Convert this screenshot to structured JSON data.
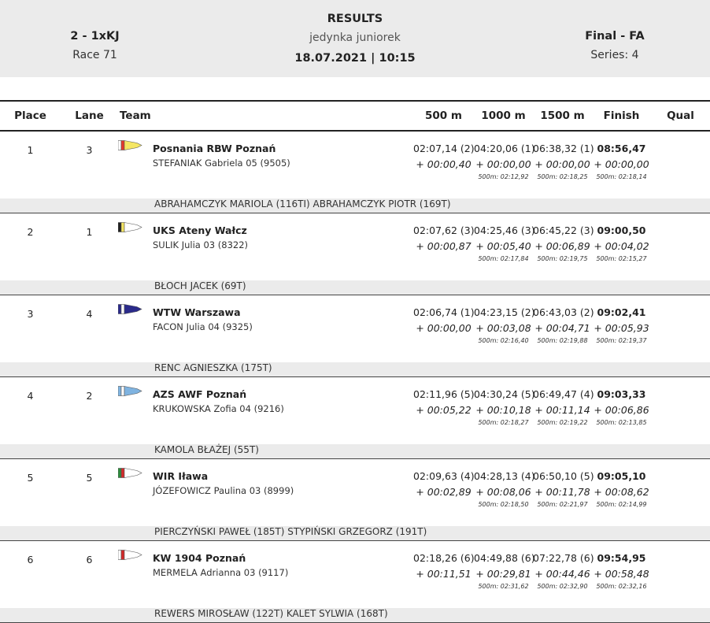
{
  "header": {
    "event_code": "2 - 1xKJ",
    "race": "Race 71",
    "title": "RESULTS",
    "event_name": "jedynka juniorek",
    "date_time": "18.07.2021 | 10:15",
    "phase": "Final - FA",
    "series": "Series: 4"
  },
  "table": {
    "columns": {
      "place": "Place",
      "lane": "Lane",
      "team": "Team",
      "m500": "500 m",
      "m1000": "1000 m",
      "m1500": "1500 m",
      "finish": "Finish",
      "qual": "Qual"
    },
    "rows": [
      {
        "place": "1",
        "lane": "3",
        "team": "Posnania RBW Poznań",
        "rower": "STEFANIAK  Gabriela 05 (9505)",
        "flag_colors": [
          "#ffffff",
          "#e6372b",
          "#f5e663"
        ],
        "splits": [
          {
            "time": "02:07,14 (2)",
            "diff": "+ 00:00,40",
            "pace": ""
          },
          {
            "time": "04:20,06 (1)",
            "diff": "+ 00:00,00",
            "pace": "500m: 02:12,92"
          },
          {
            "time": "06:38,32 (1)",
            "diff": "+ 00:00,00",
            "pace": "500m: 02:18,25"
          },
          {
            "time": "08:56,47",
            "diff": "+ 00:00,00",
            "pace": "500m: 02:18,14"
          }
        ],
        "qual": "",
        "coaches": "ABRAHAMCZYK MARIOLA (116TI) ABRAHAMCZYK PIOTR (169T)"
      },
      {
        "place": "2",
        "lane": "1",
        "team": "UKS Ateny Wałcz",
        "rower": "SULIK  Julia 03 (8322)",
        "flag_colors": [
          "#222222",
          "#f5e663",
          "#ffffff"
        ],
        "splits": [
          {
            "time": "02:07,62 (3)",
            "diff": "+ 00:00,87",
            "pace": ""
          },
          {
            "time": "04:25,46 (3)",
            "diff": "+ 00:05,40",
            "pace": "500m: 02:17,84"
          },
          {
            "time": "06:45,22 (3)",
            "diff": "+ 00:06,89",
            "pace": "500m: 02:19,75"
          },
          {
            "time": "09:00,50",
            "diff": "+ 00:04,02",
            "pace": "500m: 02:15,27"
          }
        ],
        "qual": "",
        "coaches": "BŁOCH JACEK (69T)"
      },
      {
        "place": "3",
        "lane": "4",
        "team": "WTW Warszawa",
        "rower": "FACON  Julia 04 (9325)",
        "flag_colors": [
          "#2a2a8a",
          "#ffffff",
          "#2a2a8a"
        ],
        "splits": [
          {
            "time": "02:06,74 (1)",
            "diff": "+ 00:00,00",
            "pace": ""
          },
          {
            "time": "04:23,15 (2)",
            "diff": "+ 00:03,08",
            "pace": "500m: 02:16,40"
          },
          {
            "time": "06:43,03 (2)",
            "diff": "+ 00:04,71",
            "pace": "500m: 02:19,88"
          },
          {
            "time": "09:02,41",
            "diff": "+ 00:05,93",
            "pace": "500m: 02:19,37"
          }
        ],
        "qual": "",
        "coaches": "RENC AGNIESZKA (175T)"
      },
      {
        "place": "4",
        "lane": "2",
        "team": "AZS AWF Poznań",
        "rower": "KRUKOWSKA  Zofia 04 (9216)",
        "flag_colors": [
          "#7fb3e0",
          "#ffffff",
          "#7fb3e0"
        ],
        "splits": [
          {
            "time": "02:11,96 (5)",
            "diff": "+ 00:05,22",
            "pace": ""
          },
          {
            "time": "04:30,24 (5)",
            "diff": "+ 00:10,18",
            "pace": "500m: 02:18,27"
          },
          {
            "time": "06:49,47 (4)",
            "diff": "+ 00:11,14",
            "pace": "500m: 02:19,22"
          },
          {
            "time": "09:03,33",
            "diff": "+ 00:06,86",
            "pace": "500m: 02:13,85"
          }
        ],
        "qual": "",
        "coaches": "KAMOLA BŁAŻEJ (55T)"
      },
      {
        "place": "5",
        "lane": "5",
        "team": "WIR Iława",
        "rower": "JÓZEFOWICZ  Paulina 03 (8999)",
        "flag_colors": [
          "#2e8b3e",
          "#d42a2a",
          "#ffffff"
        ],
        "splits": [
          {
            "time": "02:09,63 (4)",
            "diff": "+ 00:02,89",
            "pace": ""
          },
          {
            "time": "04:28,13 (4)",
            "diff": "+ 00:08,06",
            "pace": "500m: 02:18,50"
          },
          {
            "time": "06:50,10 (5)",
            "diff": "+ 00:11,78",
            "pace": "500m: 02:21,97"
          },
          {
            "time": "09:05,10",
            "diff": "+ 00:08,62",
            "pace": "500m: 02:14,99"
          }
        ],
        "qual": "",
        "coaches": "PIERCZYŃSKI PAWEŁ (185T) STYPIŃSKI GRZEGORZ (191T)"
      },
      {
        "place": "6",
        "lane": "6",
        "team": "KW 1904 Poznań",
        "rower": "MERMELA  Adrianna 03 (9117)",
        "flag_colors": [
          "#ffffff",
          "#d42a2a",
          "#ffffff"
        ],
        "splits": [
          {
            "time": "02:18,26 (6)",
            "diff": "+ 00:11,51",
            "pace": ""
          },
          {
            "time": "04:49,88 (6)",
            "diff": "+ 00:29,81",
            "pace": "500m: 02:31,62"
          },
          {
            "time": "07:22,78 (6)",
            "diff": "+ 00:44,46",
            "pace": "500m: 02:32,90"
          },
          {
            "time": "09:54,95",
            "diff": "+ 00:58,48",
            "pace": "500m: 02:32,16"
          }
        ],
        "qual": "",
        "coaches": "REWERS MIROSŁAW (122T) KALET SYLWIA (168T)"
      }
    ]
  }
}
